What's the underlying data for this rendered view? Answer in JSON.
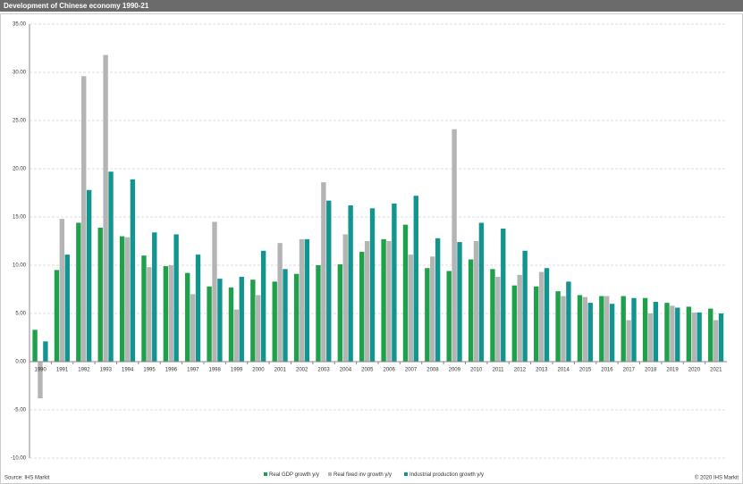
{
  "chart_data": {
    "type": "bar",
    "title": "Development of Chinese economy 1990-21",
    "source": "Source: IHS Markit",
    "copyright": "© 2020 IHS Markit",
    "categories": [
      "1990",
      "1991",
      "1992",
      "1993",
      "1994",
      "1995",
      "1996",
      "1997",
      "1998",
      "1999",
      "2000",
      "2001",
      "2002",
      "2003",
      "2004",
      "2005",
      "2006",
      "2007",
      "2008",
      "2009",
      "2010",
      "2011",
      "2012",
      "2013",
      "2014",
      "2015",
      "2016",
      "2017",
      "2018",
      "2019",
      "2020",
      "2021"
    ],
    "series": [
      {
        "name": "Real GDP growth y/y",
        "color": "#1fa04a",
        "values": [
          3.3,
          9.5,
          14.4,
          13.9,
          13.0,
          11.0,
          9.9,
          9.2,
          7.8,
          7.7,
          8.5,
          8.3,
          9.1,
          10.0,
          10.1,
          11.4,
          12.7,
          14.2,
          9.7,
          9.4,
          10.6,
          9.6,
          7.9,
          7.8,
          7.3,
          6.9,
          6.8,
          6.8,
          6.6,
          6.1,
          5.7,
          5.5
        ]
      },
      {
        "name": "Real fixed inv growth y/y",
        "color": "#b4b4b4",
        "values": [
          -3.8,
          14.8,
          29.6,
          31.8,
          12.9,
          9.8,
          10.0,
          7.0,
          14.5,
          5.4,
          6.9,
          12.3,
          12.7,
          18.6,
          13.2,
          12.5,
          12.5,
          11.1,
          10.9,
          24.1,
          12.5,
          8.8,
          9.0,
          9.3,
          6.8,
          6.7,
          6.8,
          4.3,
          5.0,
          5.8,
          5.1,
          4.3
        ]
      },
      {
        "name": "Industrial production growth y/y",
        "color": "#12958f",
        "values": [
          2.1,
          11.1,
          17.8,
          19.7,
          18.9,
          13.4,
          13.2,
          11.1,
          8.6,
          8.8,
          11.5,
          9.6,
          12.7,
          16.7,
          16.2,
          15.9,
          16.4,
          17.2,
          12.8,
          12.4,
          14.4,
          13.8,
          11.5,
          9.7,
          8.3,
          6.1,
          6.0,
          6.6,
          6.2,
          5.6,
          5.1,
          5.0
        ]
      }
    ],
    "ylim": [
      -10,
      35
    ],
    "yticks": [
      {
        "value": -10,
        "label": "-10.00"
      },
      {
        "value": -5,
        "label": "-5.00"
      },
      {
        "value": 0,
        "label": "0.00"
      },
      {
        "value": 5,
        "label": "5.00"
      },
      {
        "value": 10,
        "label": "10.00"
      },
      {
        "value": 15,
        "label": "15.00"
      },
      {
        "value": 20,
        "label": "20.00"
      },
      {
        "value": 25,
        "label": "25.00"
      },
      {
        "value": 30,
        "label": "30.00"
      },
      {
        "value": 35,
        "label": "35.00"
      }
    ],
    "grid": true,
    "legend": "bottom"
  }
}
